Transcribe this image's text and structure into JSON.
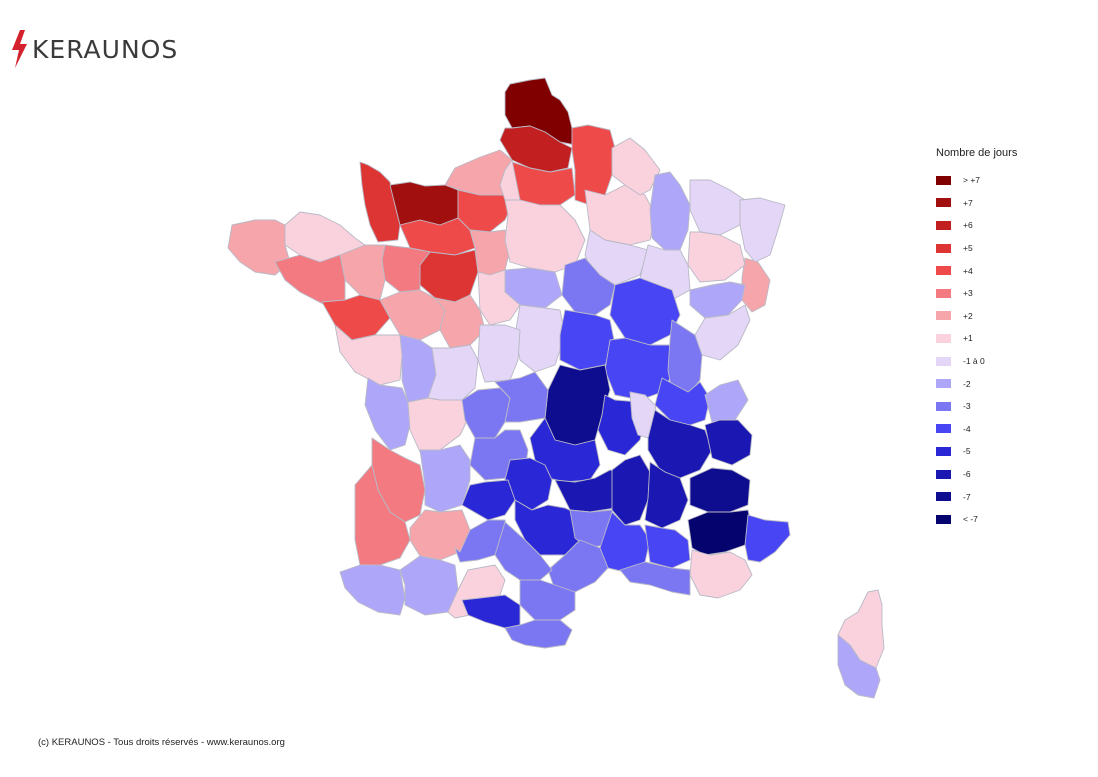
{
  "brand": {
    "name": "KERAUNOS",
    "bolt_color": "#d4212e"
  },
  "legend": {
    "title": "Nombre de jours",
    "items": [
      {
        "label": "> +7",
        "color": "#800000"
      },
      {
        "label": "+7",
        "color": "#a10f0f"
      },
      {
        "label": "+6",
        "color": "#c21f21"
      },
      {
        "label": "+5",
        "color": "#dd3434"
      },
      {
        "label": "+4",
        "color": "#ef4a4a"
      },
      {
        "label": "+3",
        "color": "#f27a80"
      },
      {
        "label": "+2",
        "color": "#f6a5ab"
      },
      {
        "label": "+1",
        "color": "#fad2de"
      },
      {
        "label": "-1 à 0",
        "color": "#e3d6f7"
      },
      {
        "label": "-2",
        "color": "#aea7f9"
      },
      {
        "label": "-3",
        "color": "#7b77f2"
      },
      {
        "label": "-4",
        "color": "#4845f5"
      },
      {
        "label": "-5",
        "color": "#2a28d6"
      },
      {
        "label": "-6",
        "color": "#1a17b3"
      },
      {
        "label": "-7",
        "color": "#0f0d8f"
      },
      {
        "label": "< -7",
        "color": "#05046e"
      }
    ]
  },
  "copyright": "(c) KERAUNOS - Tous droits réservés - www.keraunos.org",
  "map_regions": [
    {
      "name": "nord",
      "class": "> +7"
    },
    {
      "name": "pas-de-calais",
      "class": "+6"
    },
    {
      "name": "somme",
      "class": "+4"
    },
    {
      "name": "aisne",
      "class": "+4"
    },
    {
      "name": "manche",
      "class": "+5"
    },
    {
      "name": "calvados",
      "class": "+7"
    },
    {
      "name": "eure",
      "class": "+4"
    },
    {
      "name": "seine-maritime",
      "class": "+2"
    },
    {
      "name": "orne",
      "class": "+4"
    },
    {
      "name": "sarthe",
      "class": "+5"
    },
    {
      "name": "mayenne",
      "class": "+3"
    },
    {
      "name": "ille-et-vilaine",
      "class": "+2"
    },
    {
      "name": "finistere",
      "class": "+2"
    },
    {
      "name": "cotes-d-armor",
      "class": "+1"
    },
    {
      "name": "morbihan",
      "class": "+3"
    },
    {
      "name": "loire-atlantique",
      "class": "+4"
    },
    {
      "name": "vendee",
      "class": "+1"
    },
    {
      "name": "maine-et-loire",
      "class": "+2"
    },
    {
      "name": "indre-et-loire",
      "class": "+2"
    },
    {
      "name": "eure-et-loir",
      "class": "+2"
    },
    {
      "name": "ile-de-france",
      "class": "+1"
    },
    {
      "name": "oise",
      "class": "+1"
    },
    {
      "name": "marne",
      "class": "+1"
    },
    {
      "name": "ardennes",
      "class": "+1"
    },
    {
      "name": "meuse",
      "class": "-2"
    },
    {
      "name": "moselle",
      "class": "-1 à 0"
    },
    {
      "name": "bas-rhin",
      "class": "-1 à 0"
    },
    {
      "name": "haut-rhin",
      "class": "+2"
    },
    {
      "name": "aube",
      "class": "-1 à 0"
    },
    {
      "name": "haute-marne",
      "class": "-1 à 0"
    },
    {
      "name": "vosges",
      "class": "+1"
    },
    {
      "name": "loiret",
      "class": "-2"
    },
    {
      "name": "loir-et-cher",
      "class": "+1"
    },
    {
      "name": "cher",
      "class": "-1 à 0"
    },
    {
      "name": "yonne",
      "class": "-3"
    },
    {
      "name": "cote-d-or",
      "class": "-4"
    },
    {
      "name": "haute-saone",
      "class": "-2"
    },
    {
      "name": "doubs",
      "class": "-1 à 0"
    },
    {
      "name": "nievre",
      "class": "-4"
    },
    {
      "name": "saone-et-loire",
      "class": "-4"
    },
    {
      "name": "jura",
      "class": "-3"
    },
    {
      "name": "ain",
      "class": "-4"
    },
    {
      "name": "haute-savoie",
      "class": "-2"
    },
    {
      "name": "deux-sevres",
      "class": "-2"
    },
    {
      "name": "vienne",
      "class": "-1 à 0"
    },
    {
      "name": "indre",
      "class": "-1 à 0"
    },
    {
      "name": "allier",
      "class": "-7"
    },
    {
      "name": "charente-maritime",
      "class": "-2"
    },
    {
      "name": "charente",
      "class": "+1"
    },
    {
      "name": "haute-vienne",
      "class": "-3"
    },
    {
      "name": "creuse",
      "class": "-3"
    },
    {
      "name": "puy-de-dome",
      "class": "-5"
    },
    {
      "name": "loire",
      "class": "-5"
    },
    {
      "name": "rhone",
      "class": "-1 à 0"
    },
    {
      "name": "isere",
      "class": "-6"
    },
    {
      "name": "savoie",
      "class": "-6"
    },
    {
      "name": "gironde",
      "class": "+3"
    },
    {
      "name": "dordogne",
      "class": "-2"
    },
    {
      "name": "correze",
      "class": "-3"
    },
    {
      "name": "cantal",
      "class": "-5"
    },
    {
      "name": "haute-loire",
      "class": "-6"
    },
    {
      "name": "ardeche",
      "class": "-6"
    },
    {
      "name": "drome",
      "class": "-6"
    },
    {
      "name": "hautes-alpes",
      "class": "-7"
    },
    {
      "name": "landes",
      "class": "+3"
    },
    {
      "name": "lot-et-garonne",
      "class": "+2"
    },
    {
      "name": "lot",
      "class": "-5"
    },
    {
      "name": "aveyron",
      "class": "-5"
    },
    {
      "name": "lozere",
      "class": "-3"
    },
    {
      "name": "gard",
      "class": "-4"
    },
    {
      "name": "vaucluse",
      "class": "-4"
    },
    {
      "name": "alpes-de-haute-provence",
      "class": "< -7"
    },
    {
      "name": "alpes-maritimes",
      "class": "-4"
    },
    {
      "name": "var",
      "class": "+1"
    },
    {
      "name": "bouches-du-rhone",
      "class": "-3"
    },
    {
      "name": "herault",
      "class": "-3"
    },
    {
      "name": "pyrenees-atlantiques",
      "class": "-2"
    },
    {
      "name": "gers",
      "class": "-2"
    },
    {
      "name": "tarn-et-garonne",
      "class": "-3"
    },
    {
      "name": "tarn",
      "class": "-3"
    },
    {
      "name": "haute-garonne",
      "class": "+1"
    },
    {
      "name": "ariege",
      "class": "-5"
    },
    {
      "name": "aude",
      "class": "-3"
    },
    {
      "name": "pyrenees-orientales",
      "class": "-3"
    },
    {
      "name": "haute-corse",
      "class": "+1"
    },
    {
      "name": "corse-du-sud",
      "class": "-2"
    }
  ]
}
